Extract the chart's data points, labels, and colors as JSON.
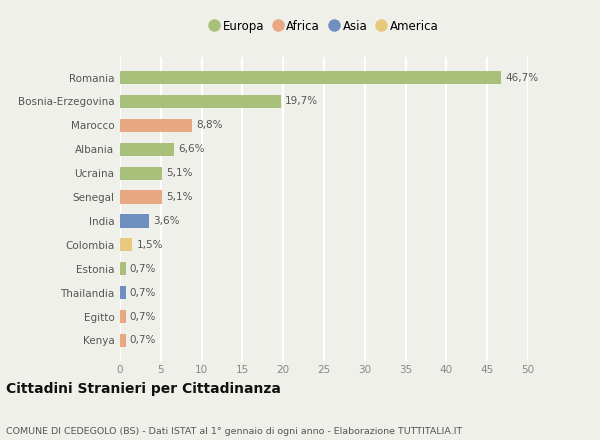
{
  "countries": [
    "Kenya",
    "Egitto",
    "Thailandia",
    "Estonia",
    "Colombia",
    "India",
    "Senegal",
    "Ucraina",
    "Albania",
    "Marocco",
    "Bosnia-Erzegovina",
    "Romania"
  ],
  "values": [
    0.7,
    0.7,
    0.7,
    0.7,
    1.5,
    3.6,
    5.1,
    5.1,
    6.6,
    8.8,
    19.7,
    46.7
  ],
  "labels": [
    "0,7%",
    "0,7%",
    "0,7%",
    "0,7%",
    "1,5%",
    "3,6%",
    "5,1%",
    "5,1%",
    "6,6%",
    "8,8%",
    "19,7%",
    "46,7%"
  ],
  "continents": [
    "Africa",
    "Africa",
    "Asia",
    "Europa",
    "America",
    "Asia",
    "Africa",
    "Europa",
    "Europa",
    "Africa",
    "Europa",
    "Europa"
  ],
  "colors": {
    "Europa": "#a8c07a",
    "Africa": "#e8a882",
    "Asia": "#6e8fc0",
    "America": "#e8c87a"
  },
  "legend_order": [
    "Europa",
    "Africa",
    "Asia",
    "America"
  ],
  "xlim": [
    0,
    50
  ],
  "xticks": [
    0,
    5,
    10,
    15,
    20,
    25,
    30,
    35,
    40,
    45,
    50
  ],
  "title": "Cittadini Stranieri per Cittadinanza",
  "subtitle": "COMUNE DI CEDEGOLO (BS) - Dati ISTAT al 1° gennaio di ogni anno - Elaborazione TUTTITALIA.IT",
  "bg_color": "#f0f0eb",
  "grid_color": "#ffffff",
  "bar_height": 0.55,
  "label_fontsize": 7.5,
  "tick_fontsize": 7.5,
  "legend_fontsize": 8.5,
  "title_fontsize": 10,
  "subtitle_fontsize": 6.8
}
